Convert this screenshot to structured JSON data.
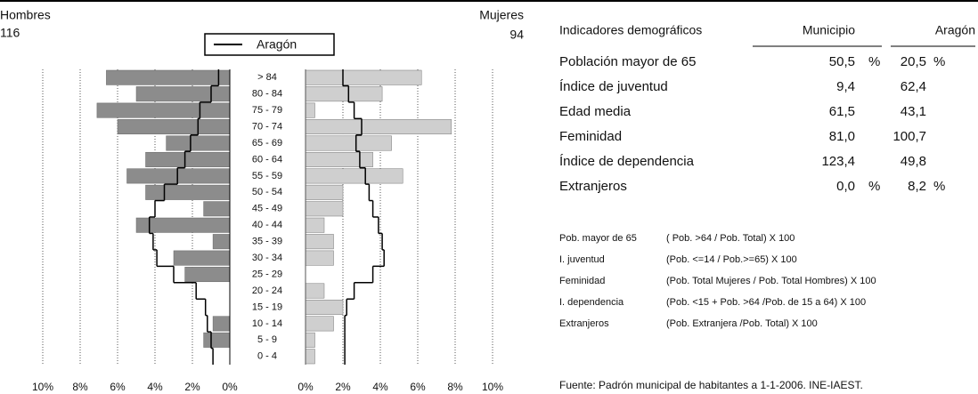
{
  "chart_data": {
    "type": "pyramid",
    "categories": [
      "> 84",
      "80 - 84",
      "75 - 79",
      "70 - 74",
      "65 - 69",
      "60 - 64",
      "55 - 59",
      "50 - 54",
      "45 - 49",
      "40 - 44",
      "35 - 39",
      "30 - 34",
      "25 - 29",
      "20 - 24",
      "15 - 19",
      "10 - 14",
      "5 - 9",
      "0 - 4"
    ],
    "series": [
      {
        "name": "Hombres",
        "total": "116",
        "color": "#8c8c8c",
        "values": [
          6.6,
          5.0,
          7.1,
          6.0,
          3.4,
          4.5,
          5.5,
          4.5,
          1.4,
          5.0,
          0.9,
          3.0,
          2.4,
          0,
          0,
          0.9,
          1.4,
          0
        ]
      },
      {
        "name": "Mujeres",
        "total": "94",
        "color": "#cfcfcf",
        "values": [
          6.2,
          4.1,
          0.5,
          7.8,
          4.6,
          3.6,
          5.2,
          2.0,
          2.0,
          1.0,
          1.5,
          1.5,
          0,
          1.0,
          2.0,
          1.5,
          0.5,
          0.5
        ]
      }
    ],
    "reference": {
      "name": "Aragón",
      "color": "#000000",
      "hombres": [
        0.6,
        1.0,
        1.6,
        1.7,
        2.1,
        2.4,
        2.8,
        3.5,
        4.0,
        4.3,
        4.1,
        3.9,
        3.0,
        1.8,
        1.3,
        1.2,
        1.0,
        0.9
      ],
      "mujeres": [
        2.0,
        2.3,
        2.6,
        3.0,
        2.7,
        2.9,
        3.2,
        3.4,
        3.6,
        3.9,
        4.1,
        4.2,
        3.6,
        2.6,
        2.2,
        2.1,
        2.1,
        2.1
      ]
    },
    "xlim": [
      0,
      10
    ],
    "xticks": [
      {
        "value": 10,
        "label": "10%"
      },
      {
        "value": 8,
        "label": "8%"
      },
      {
        "value": 6,
        "label": "6%"
      },
      {
        "value": 4,
        "label": "4%"
      },
      {
        "value": 2,
        "label": "2%"
      },
      {
        "value": 0,
        "label": "0%"
      }
    ],
    "grid": true
  },
  "indicators": {
    "header": [
      "Indicadores demográficos",
      "Municipio",
      "Aragón"
    ],
    "rows": [
      [
        "Población mayor de 65",
        "50,5",
        "%",
        "20,5",
        "%"
      ],
      [
        "Índice de juventud",
        "9,4",
        "",
        "62,4",
        ""
      ],
      [
        "Edad media",
        "61,5",
        "",
        "43,1",
        ""
      ],
      [
        "Feminidad",
        "81,0",
        "",
        "100,7",
        ""
      ],
      [
        "Índice de dependencia",
        "123,4",
        "",
        "49,8",
        ""
      ],
      [
        "Extranjeros",
        "0,0",
        "%",
        "8,2",
        "%"
      ]
    ]
  },
  "definitions": [
    [
      "Pob. mayor de 65",
      "( Pob. >64 / Pob. Total) X 100"
    ],
    [
      "I. juventud",
      "(Pob. <=14 / Pob.>=65) X 100"
    ],
    [
      "Feminidad",
      "(Pob. Total Mujeres / Pob. Total Hombres) X 100"
    ],
    [
      "I. dependencia",
      "(Pob. <15 + Pob. >64 /Pob. de 15 a 64) X 100"
    ],
    [
      "Extranjeros",
      "(Pob. Extranjera /Pob. Total) X 100"
    ]
  ],
  "source": "Fuente: Padrón municipal de habitantes a 1-1-2006. INE-IAEST."
}
